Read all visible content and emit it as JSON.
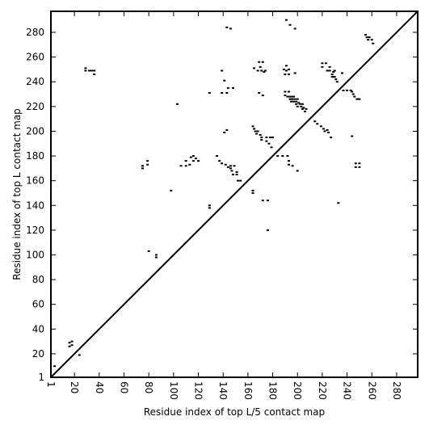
{
  "chart_data": {
    "type": "scatter",
    "title": "",
    "xlabel": "Residue index of top L/5 contact map",
    "ylabel": "Residue index of top L contact map",
    "xlim": [
      1,
      297
    ],
    "ylim": [
      1,
      297
    ],
    "xticks": [
      1,
      20,
      40,
      60,
      80,
      100,
      120,
      140,
      160,
      180,
      200,
      220,
      240,
      260,
      280
    ],
    "yticks": [
      1,
      20,
      40,
      60,
      80,
      100,
      120,
      140,
      160,
      180,
      200,
      220,
      240,
      260,
      280
    ],
    "grid": false,
    "legend": "none",
    "diagonal": true,
    "colors": {
      "points": "#000000",
      "diagonal": "#000000",
      "axes": "#000000"
    },
    "series": [
      {
        "points": [
          [
            4,
            10
          ],
          [
            16,
            26
          ],
          [
            16,
            29
          ],
          [
            18,
            27
          ],
          [
            18,
            30
          ],
          [
            24,
            19
          ],
          [
            29,
            249
          ],
          [
            29,
            251
          ],
          [
            32,
            249
          ],
          [
            34,
            249
          ],
          [
            36,
            246
          ],
          [
            36,
            249
          ],
          [
            75,
            170
          ],
          [
            75,
            172
          ],
          [
            79,
            173
          ],
          [
            79,
            176
          ],
          [
            80,
            103
          ],
          [
            86,
            98
          ],
          [
            86,
            100
          ],
          [
            98,
            152
          ],
          [
            103,
            222
          ],
          [
            106,
            172
          ],
          [
            110,
            172
          ],
          [
            110,
            176
          ],
          [
            113,
            173
          ],
          [
            114,
            179
          ],
          [
            116,
            176
          ],
          [
            116,
            180
          ],
          [
            118,
            178
          ],
          [
            120,
            176
          ],
          [
            129,
            138
          ],
          [
            129,
            140
          ],
          [
            129,
            231
          ],
          [
            135,
            180
          ],
          [
            137,
            176
          ],
          [
            139,
            174
          ],
          [
            139,
            249
          ],
          [
            139,
            231
          ],
          [
            141,
            199
          ],
          [
            141,
            241
          ],
          [
            142,
            173
          ],
          [
            143,
            231
          ],
          [
            143,
            201
          ],
          [
            143,
            284
          ],
          [
            144,
            171
          ],
          [
            144,
            235
          ],
          [
            146,
            170
          ],
          [
            146,
            172
          ],
          [
            146,
            283
          ],
          [
            147,
            168
          ],
          [
            148,
            165
          ],
          [
            148,
            235
          ],
          [
            149,
            172
          ],
          [
            151,
            165
          ],
          [
            151,
            167
          ],
          [
            152,
            160
          ],
          [
            154,
            160
          ],
          [
            164,
            152
          ],
          [
            164,
            150
          ],
          [
            164,
            204
          ],
          [
            165,
            202
          ],
          [
            165,
            251
          ],
          [
            166,
            200
          ],
          [
            167,
            198
          ],
          [
            168,
            200
          ],
          [
            168,
            249
          ],
          [
            169,
            231
          ],
          [
            169,
            256
          ],
          [
            170,
            197
          ],
          [
            170,
            252
          ],
          [
            171,
            195
          ],
          [
            171,
            193
          ],
          [
            171,
            249
          ],
          [
            172,
            229
          ],
          [
            172,
            144
          ],
          [
            172,
            256
          ],
          [
            173,
            248
          ],
          [
            174,
            249
          ],
          [
            175,
            192
          ],
          [
            175,
            195
          ],
          [
            176,
            120
          ],
          [
            176,
            144
          ],
          [
            177,
            190
          ],
          [
            178,
            195
          ],
          [
            179,
            187
          ],
          [
            180,
            195
          ],
          [
            184,
            180
          ],
          [
            188,
            180
          ],
          [
            189,
            250
          ],
          [
            190,
            246
          ],
          [
            190,
            232
          ],
          [
            190,
            229
          ],
          [
            191,
            249
          ],
          [
            191,
            253
          ],
          [
            191,
            290
          ],
          [
            192,
            180
          ],
          [
            192,
            228
          ],
          [
            193,
            176
          ],
          [
            193,
            173
          ],
          [
            193,
            250
          ],
          [
            193,
            246
          ],
          [
            193,
            232
          ],
          [
            194,
            286
          ],
          [
            194,
            228
          ],
          [
            194,
            226
          ],
          [
            195,
            224
          ],
          [
            195,
            226
          ],
          [
            196,
            228
          ],
          [
            196,
            172
          ],
          [
            196,
            226
          ],
          [
            197,
            224
          ],
          [
            197,
            228
          ],
          [
            198,
            226
          ],
          [
            198,
            247
          ],
          [
            198,
            283
          ],
          [
            199,
            222
          ],
          [
            199,
            224
          ],
          [
            200,
            226
          ],
          [
            200,
            220
          ],
          [
            200,
            168
          ],
          [
            201,
            223
          ],
          [
            202,
            222
          ],
          [
            203,
            220
          ],
          [
            204,
            222
          ],
          [
            204,
            218
          ],
          [
            205,
            219
          ],
          [
            206,
            216
          ],
          [
            207,
            218
          ],
          [
            214,
            208
          ],
          [
            216,
            206
          ],
          [
            219,
            204
          ],
          [
            220,
            255
          ],
          [
            220,
            252
          ],
          [
            221,
            202
          ],
          [
            222,
            200
          ],
          [
            223,
            255
          ],
          [
            224,
            201
          ],
          [
            224,
            249
          ],
          [
            225,
            199
          ],
          [
            226,
            252
          ],
          [
            226,
            249
          ],
          [
            227,
            195
          ],
          [
            228,
            246
          ],
          [
            228,
            244
          ],
          [
            229,
            248
          ],
          [
            229,
            244
          ],
          [
            230,
            249
          ],
          [
            230,
            244
          ],
          [
            231,
            242
          ],
          [
            232,
            240
          ],
          [
            233,
            142
          ],
          [
            236,
            247
          ],
          [
            237,
            233
          ],
          [
            240,
            233
          ],
          [
            243,
            233
          ],
          [
            244,
            196
          ],
          [
            244,
            232
          ],
          [
            245,
            230
          ],
          [
            246,
            228
          ],
          [
            247,
            171
          ],
          [
            247,
            174
          ],
          [
            248,
            226
          ],
          [
            249,
            226
          ],
          [
            250,
            171
          ],
          [
            250,
            174
          ],
          [
            250,
            226
          ],
          [
            255,
            278
          ],
          [
            256,
            276
          ],
          [
            257,
            274
          ],
          [
            258,
            276
          ],
          [
            260,
            274
          ],
          [
            261,
            271
          ]
        ]
      }
    ]
  }
}
